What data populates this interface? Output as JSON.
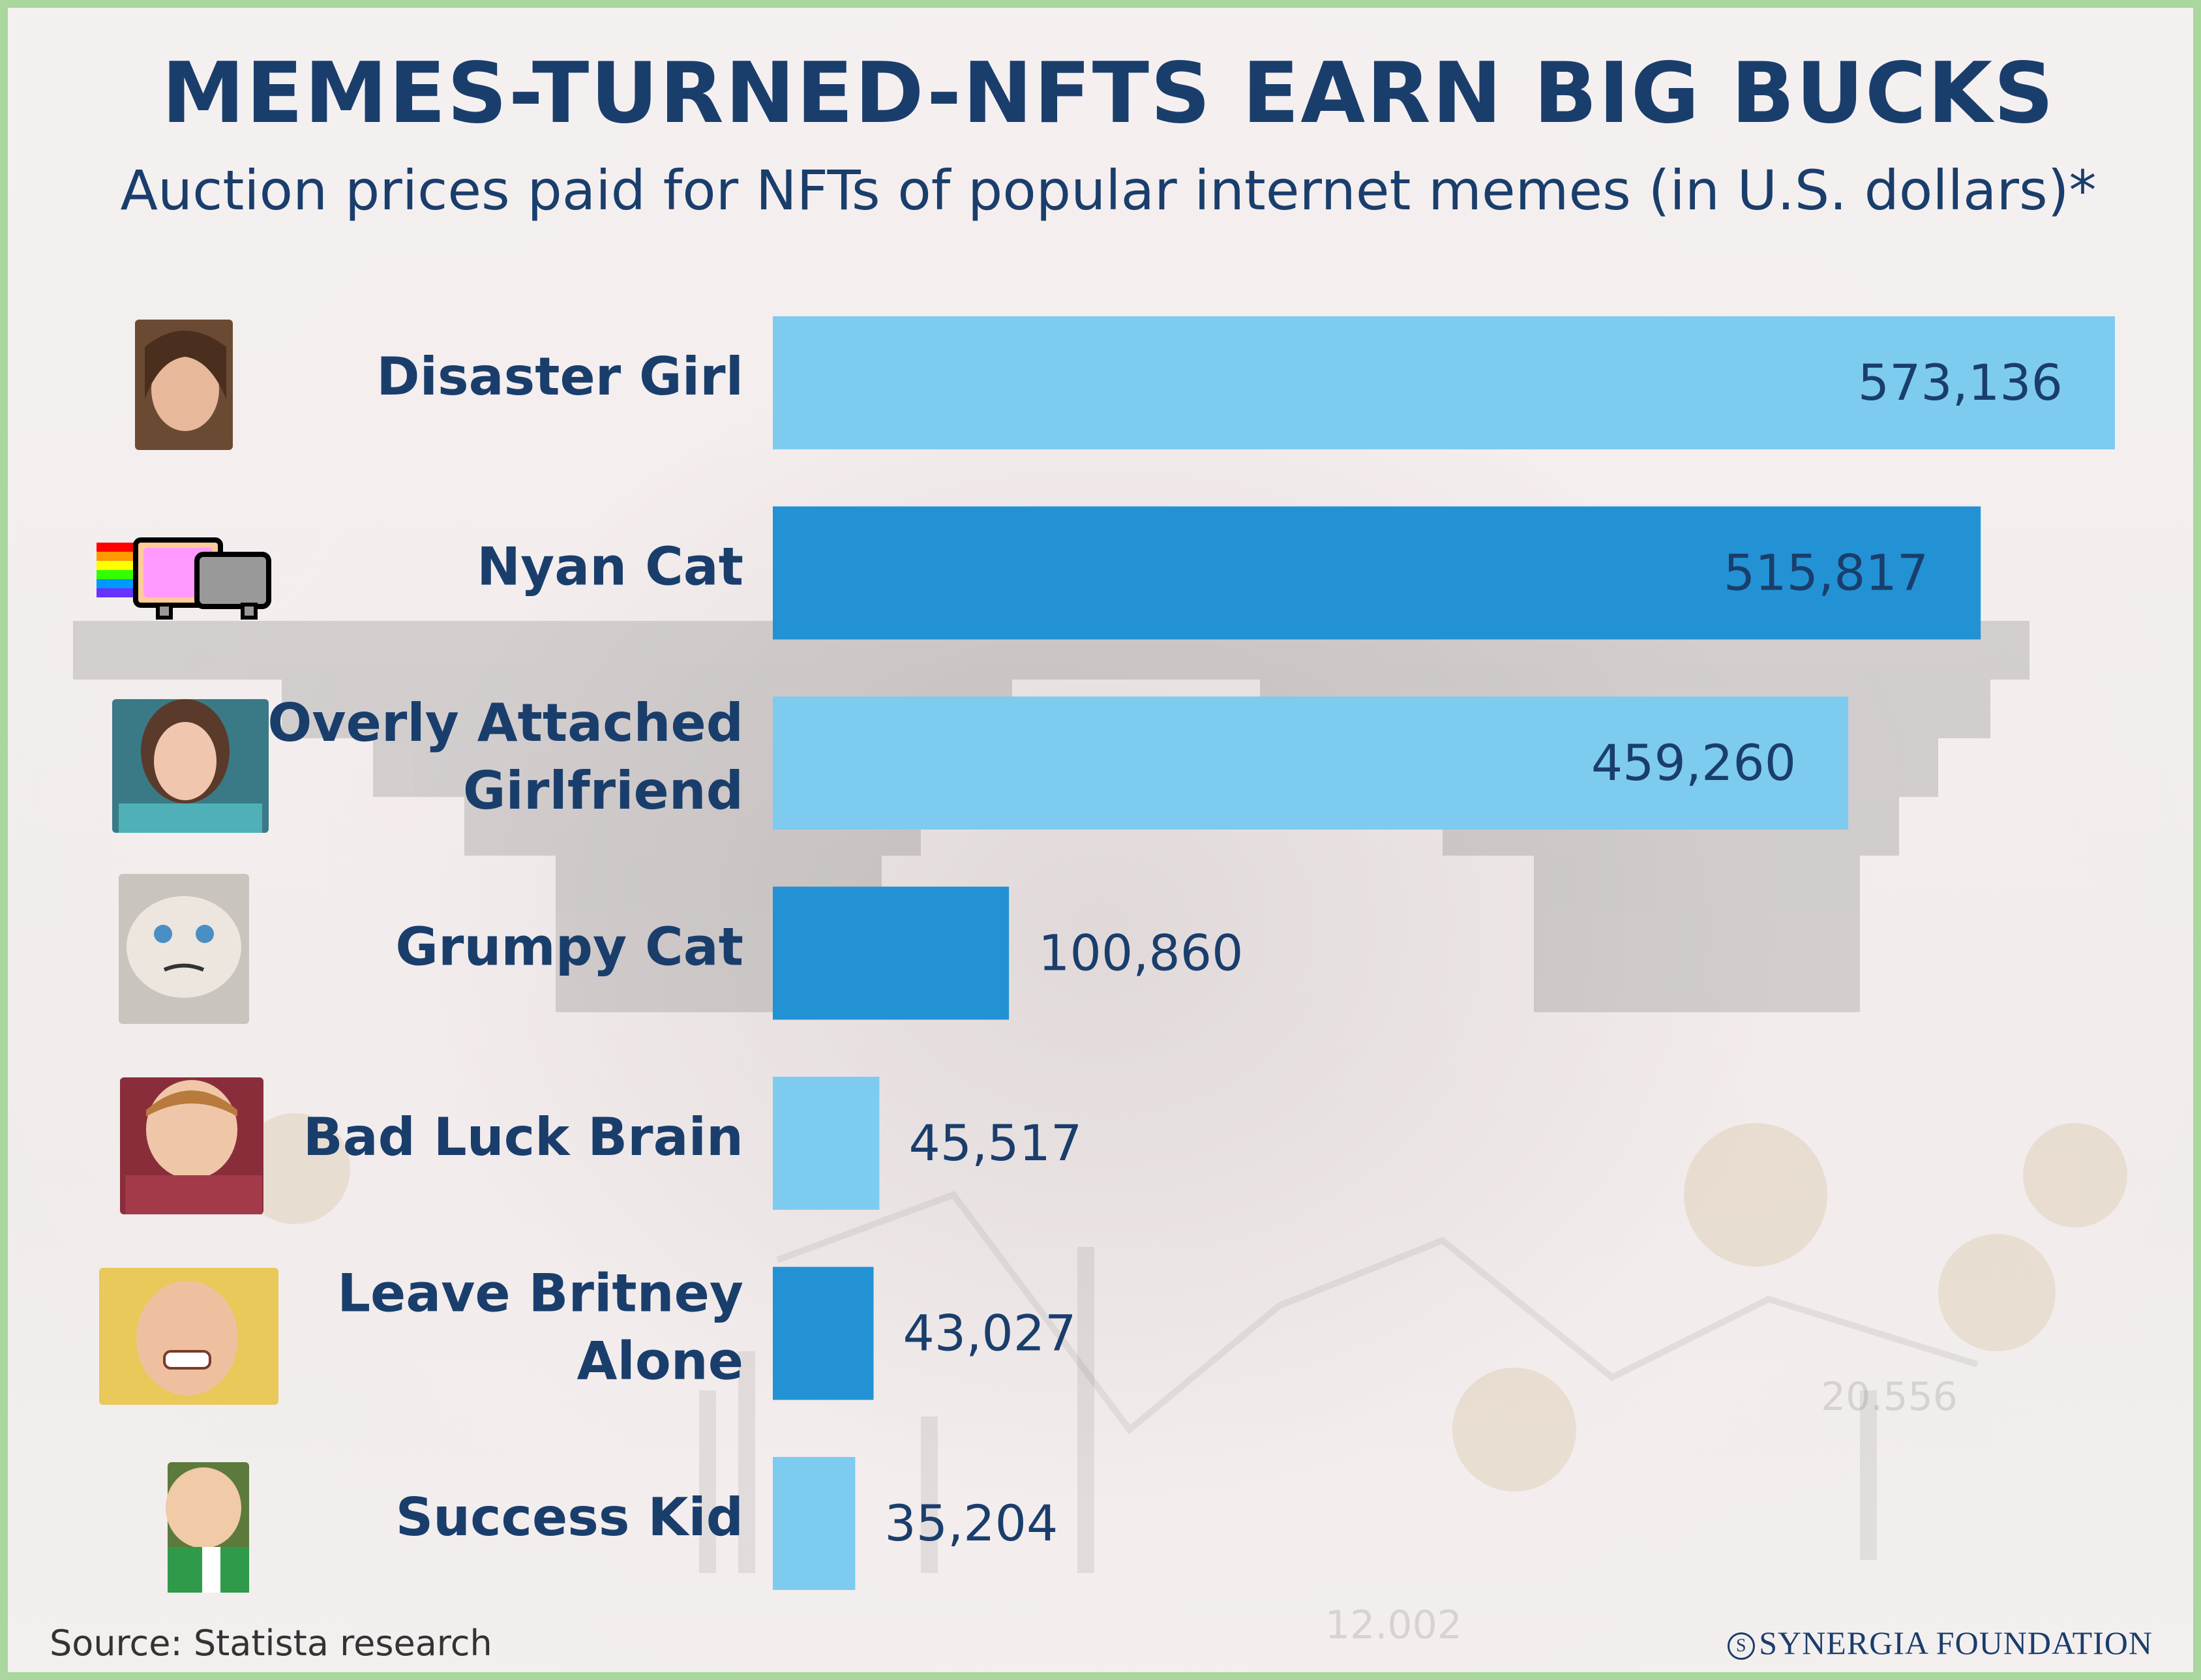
{
  "chart_data": {
    "type": "bar",
    "orientation": "horizontal",
    "title": "MEMES-TURNED-NFTS EARN BIG BUCKS",
    "subtitle": "Auction prices paid for NFTs of popular internet memes (in U.S. dollars)*",
    "categories": [
      [
        "Disaster Girl"
      ],
      [
        "Nyan Cat"
      ],
      [
        "Overly Attached",
        "Girlfriend"
      ],
      [
        "Grumpy Cat"
      ],
      [
        "Bad Luck Brain"
      ],
      [
        "Leave Britney",
        "Alone"
      ],
      [
        "Success Kid"
      ]
    ],
    "values": [
      573136,
      515817,
      459260,
      100860,
      45517,
      43027,
      35204
    ],
    "value_labels": [
      "573,136",
      "515,817",
      "459,260",
      "100,860",
      "45,517",
      "43,027",
      "35,204"
    ],
    "bar_colors": [
      "#7ecbf0",
      "#2292d4",
      "#7ecbf0",
      "#2292d4",
      "#7ecbf0",
      "#2292d4",
      "#7ecbf0"
    ],
    "xlim": [
      0,
      573136
    ],
    "grid": false,
    "legend": "none"
  },
  "footer": {
    "source": "Source: Statista research",
    "brand": "SYNERGIA FOUNDATION",
    "brand_mark": "S"
  },
  "background": {
    "numbers": [
      "20.556",
      "12.002"
    ]
  },
  "colors": {
    "title": "#1a3e6c",
    "border": "#a9d79d"
  }
}
